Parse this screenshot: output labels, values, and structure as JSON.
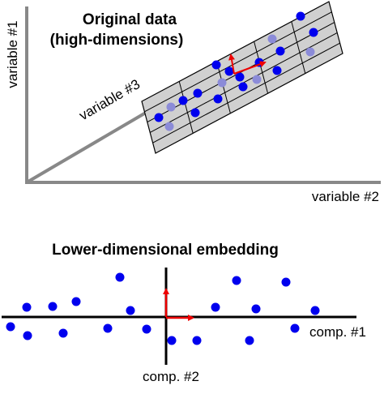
{
  "top_panel": {
    "title_line1": "Original data",
    "title_line2": "(high-dimensions)",
    "axis_y_label": "variable #1",
    "axis_x_label": "variable #2",
    "axis_z_label": "variable #3"
  },
  "bottom_panel": {
    "title": "Lower-dimensional embedding",
    "axis_h_label": "comp. #1",
    "axis_v_label": "comp. #2"
  },
  "colors": {
    "axis_gray": "#888888",
    "grid_fill": "#d0d0d0",
    "point_blue": "#0000ee",
    "point_faded": "#8b8bd8",
    "arrow_red": "#ee0000",
    "text": "#000000"
  }
}
